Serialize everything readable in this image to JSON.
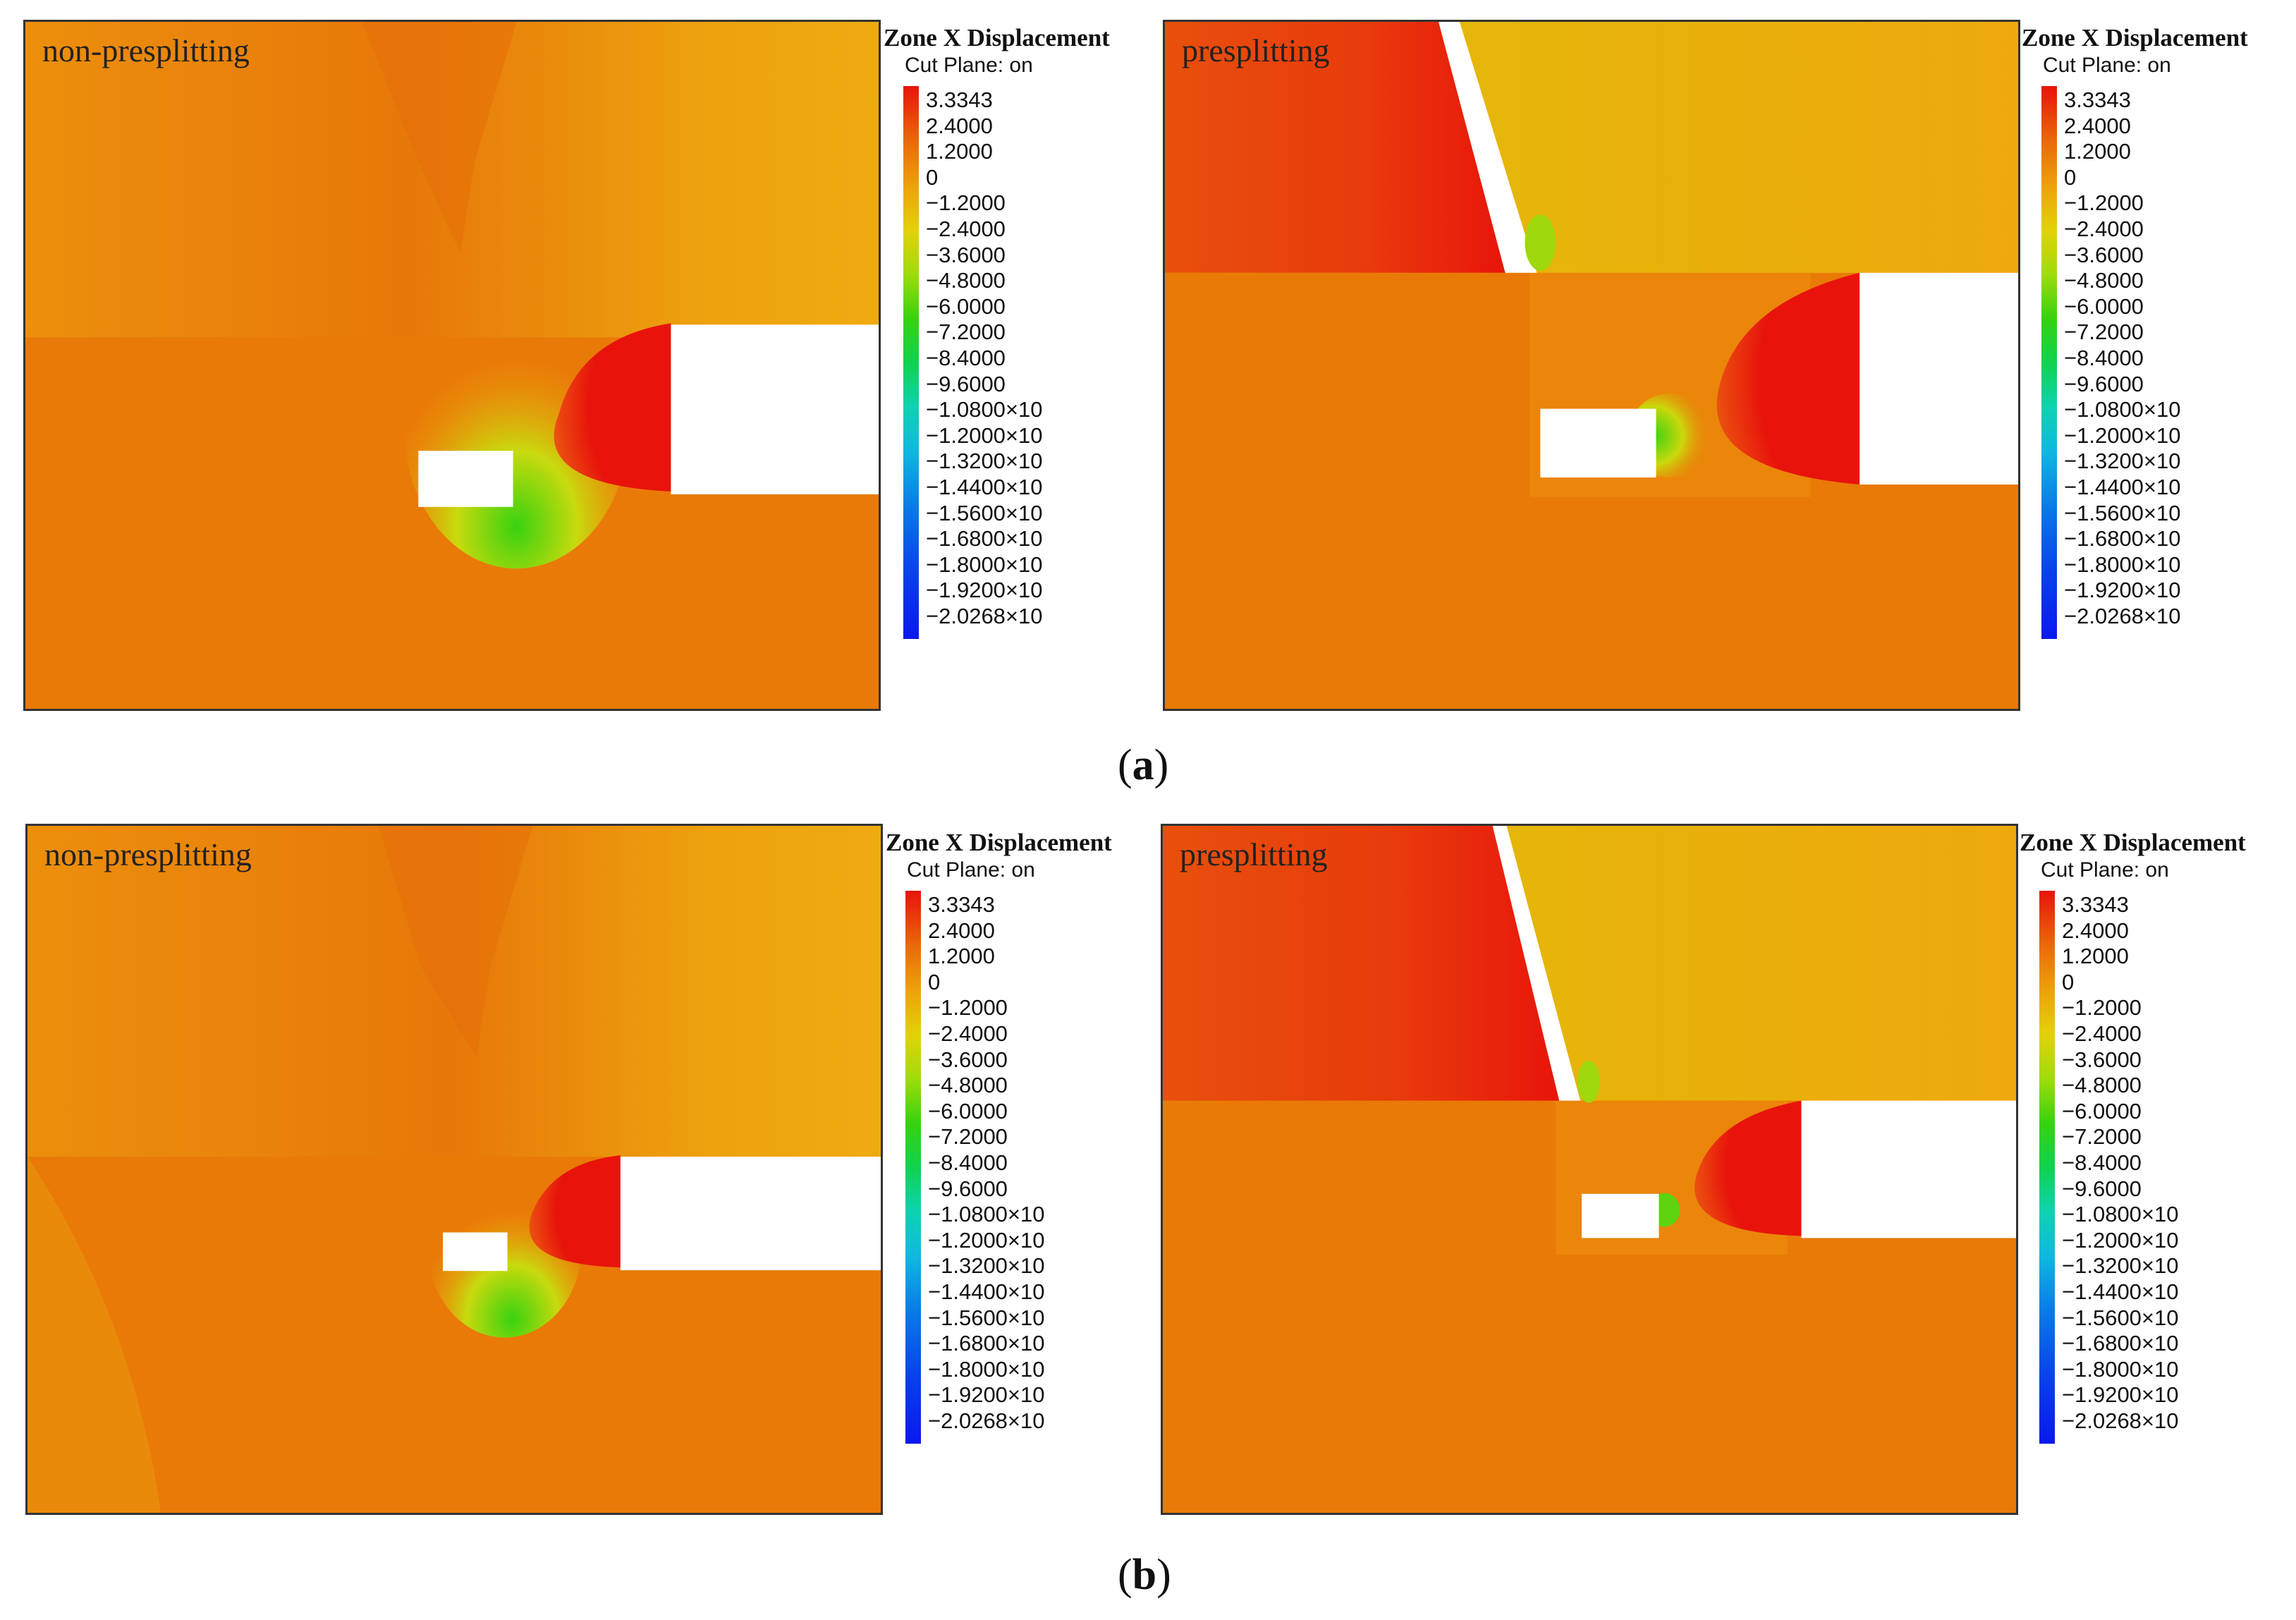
{
  "legend": {
    "title": "Zone X Displacement",
    "subtitle": "Cut Plane: on",
    "ticks": [
      "3.3343",
      "2.4000",
      "1.2000",
      "0",
      "−1.2000",
      "−2.4000",
      "−3.6000",
      "−4.8000",
      "−6.0000",
      "−7.2000",
      "−8.4000",
      "−9.6000",
      "−1.0800×10",
      "−1.2000×10",
      "−1.3200×10",
      "−1.4400×10",
      "−1.5600×10",
      "−1.6800×10",
      "−1.8000×10",
      "−1.9200×10",
      "−2.0268×10"
    ]
  },
  "panels": [
    {
      "id": "a",
      "label": "a",
      "left_case": "non-presplitting",
      "right_case": "presplitting"
    },
    {
      "id": "b",
      "label": "b",
      "left_case": "non-presplitting",
      "right_case": "presplitting"
    }
  ],
  "colors": {
    "background_rock": "#e97a07",
    "upper_layer": "#eda10c",
    "max_positive": "#e8130b",
    "yellow": "#e3c108",
    "green": "#3ad20f",
    "excavation": "#ffffff"
  }
}
